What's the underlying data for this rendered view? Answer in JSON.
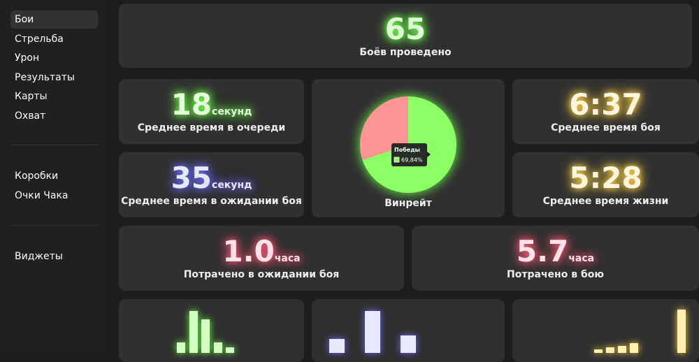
{
  "sidebar": {
    "groups": [
      [
        "Бои",
        "Стрельба",
        "Урон",
        "Результаты",
        "Карты",
        "Охват"
      ],
      [
        "Коробки",
        "Очки Чака"
      ],
      [
        "Виджеты"
      ]
    ],
    "selected": 0
  },
  "stats": [
    {
      "value": 65,
      "label": "Боёв проведено",
      "color": "#dcffd2",
      "glow": "#6cff4a"
    },
    {
      "value": 18,
      "unit": "секунд",
      "label": "Среднее время в очереди",
      "color": "#e6ffdc",
      "glow": "#6cff4a"
    },
    {
      "value": "6:37",
      "label": "Среднее время боя",
      "color": "#fff5dc",
      "glow": "#ffd24a"
    },
    {
      "value": 35,
      "unit": "секунд",
      "label": "Среднее время в ожидании боя",
      "color": "#e8e8ff",
      "glow": "#6a6aff"
    },
    {
      "value": "5:28",
      "label": "Среднее время жизни",
      "color": "#fff5dc",
      "glow": "#ffd24a"
    },
    {
      "value": "1.0",
      "unit": "часа",
      "label": "Потрачено в ожидании боя",
      "color": "#ffe2e8",
      "glow": "#ff5a7a"
    },
    {
      "value": "5.7",
      "unit": "часа",
      "label": "Потрачено в бою",
      "color": "#ffe2e8",
      "glow": "#ff5a7a"
    }
  ],
  "winrate": {
    "type": "pie",
    "label": "Винрейт",
    "glow": "#6cff4a",
    "slices": [
      {
        "name": "Победы",
        "value": 69.84,
        "value_label": "69,84%",
        "color": "#8cff66"
      },
      {
        "value": 30.16,
        "color": "#ff9494"
      }
    ]
  },
  "histograms": [
    {
      "type": "bar",
      "color": "#d4ffc4",
      "glow": "#6cff4a",
      "values": [
        15,
        60,
        48,
        15,
        8
      ]
    },
    {
      "type": "bar",
      "color": "#e8e8ff",
      "glow": "#6a6aff",
      "values": [
        20,
        60,
        25
      ]
    },
    {
      "type": "bar",
      "color": "#fff0b0",
      "glow": "#ffd24a",
      "values": [
        5,
        8,
        10,
        14,
        0,
        0,
        0,
        62
      ]
    }
  ]
}
